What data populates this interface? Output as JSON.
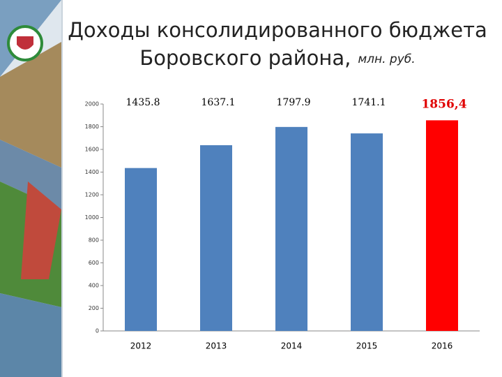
{
  "chart_data": {
    "type": "bar",
    "title": [
      "Доходы консолидированного бюджета",
      "Боровского района,"
    ],
    "unit": "млн. руб.",
    "categories": [
      "2012",
      "2013",
      "2014",
      "2015",
      "2016"
    ],
    "values": [
      1435.8,
      1637.1,
      1797.9,
      1741.1,
      1856.4
    ],
    "value_labels": [
      "1435.8",
      "1637.1",
      "1797.9",
      "1741.1",
      "1856,4"
    ],
    "colors": [
      "#4f81bd",
      "#4f81bd",
      "#4f81bd",
      "#4f81bd",
      "#ff0000"
    ],
    "ylim": [
      0,
      2000
    ],
    "yticks": [
      0,
      200,
      400,
      600,
      800,
      1000,
      1200,
      1400,
      1600,
      1800,
      2000
    ],
    "grid": false
  }
}
